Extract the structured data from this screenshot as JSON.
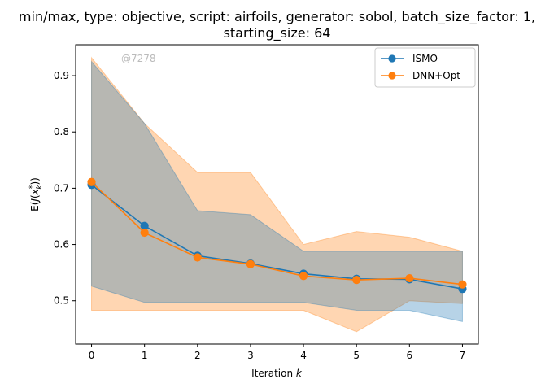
{
  "chart_data": {
    "type": "line",
    "title_line1": "min/max, type: objective, script: airfoils, generator: sobol, batch_size_factor: 1,",
    "title_line2": "starting_size: 64",
    "xlabel": "Iteration k",
    "ylabel": "E(J(x_k*))",
    "watermark": "@7278",
    "x": [
      0,
      1,
      2,
      3,
      4,
      5,
      6,
      7
    ],
    "xlim": [
      -0.3,
      7.3
    ],
    "ylim": [
      0.423,
      0.955
    ],
    "xticks": [
      "0",
      "1",
      "2",
      "3",
      "4",
      "5",
      "6",
      "7"
    ],
    "yticks": [
      "0.5",
      "0.6",
      "0.7",
      "0.8",
      "0.9"
    ],
    "ytick_values": [
      0.5,
      0.6,
      0.7,
      0.8,
      0.9
    ],
    "legend_position": "top-right",
    "grid": false,
    "series": [
      {
        "name": "ISMO",
        "color": "#1f77b4",
        "values": [
          0.706,
          0.633,
          0.58,
          0.566,
          0.548,
          0.539,
          0.538,
          0.521
        ],
        "min": [
          0.526,
          0.497,
          0.497,
          0.497,
          0.497,
          0.483,
          0.483,
          0.463
        ],
        "max": [
          0.925,
          0.815,
          0.66,
          0.653,
          0.588,
          0.588,
          0.588,
          0.588
        ]
      },
      {
        "name": "DNN+Opt",
        "color": "#ff7f0e",
        "values": [
          0.711,
          0.621,
          0.577,
          0.565,
          0.544,
          0.537,
          0.54,
          0.529
        ],
        "min": [
          0.483,
          0.483,
          0.483,
          0.483,
          0.483,
          0.445,
          0.5,
          0.495
        ],
        "max": [
          0.932,
          0.815,
          0.728,
          0.728,
          0.6,
          0.623,
          0.613,
          0.588
        ]
      }
    ]
  }
}
